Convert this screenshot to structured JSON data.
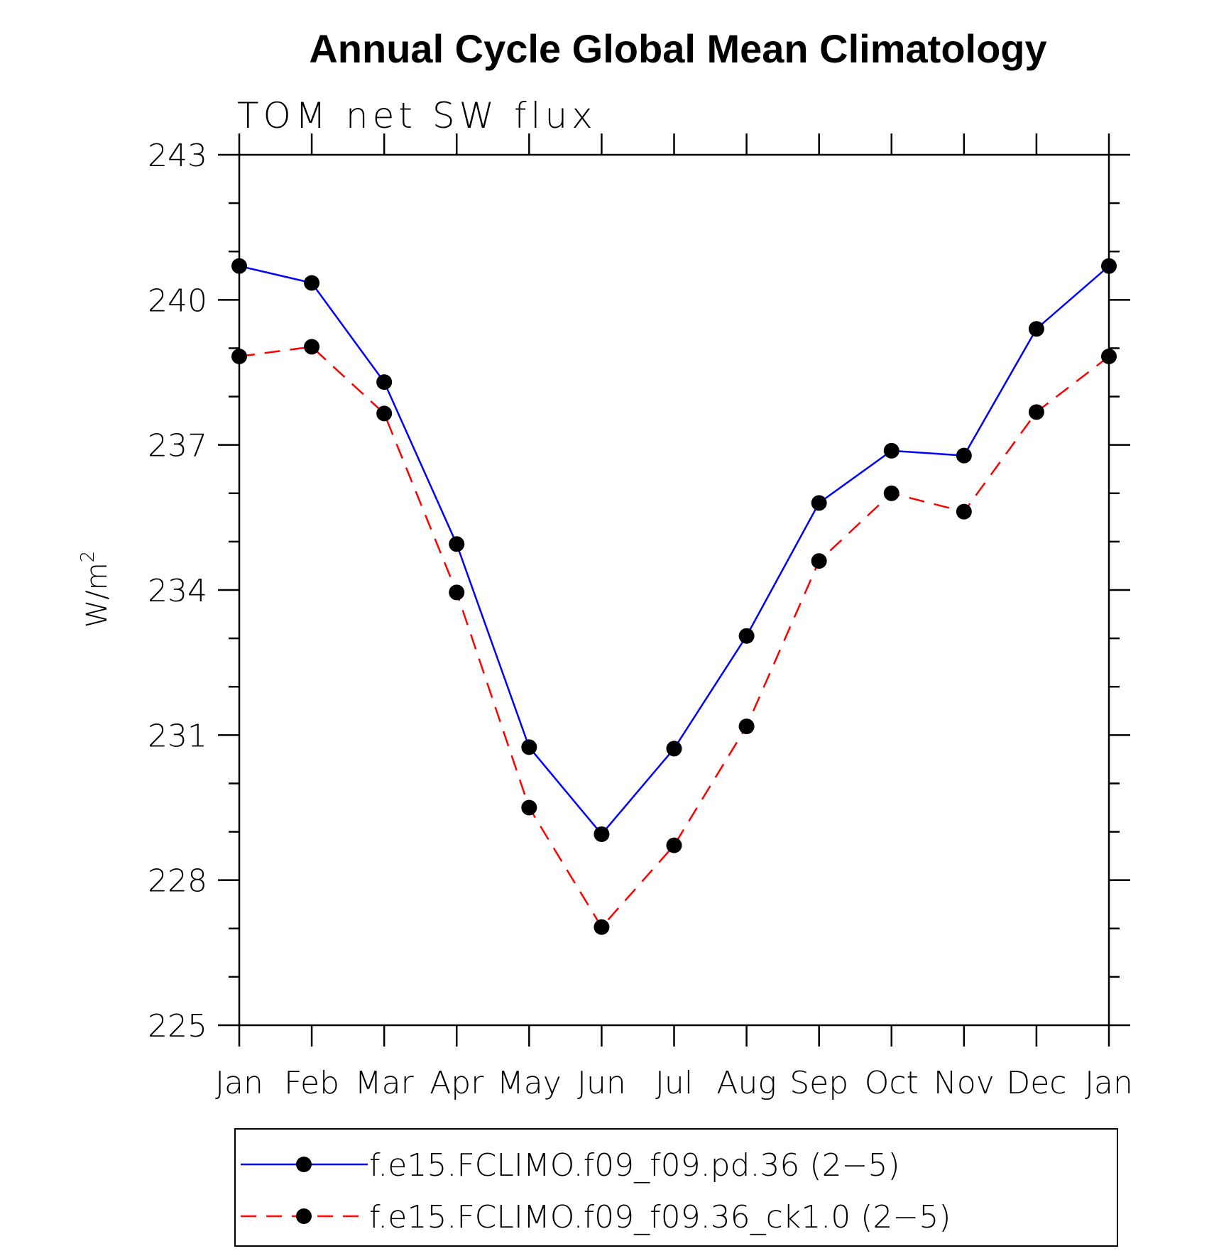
{
  "chart_data": {
    "type": "line",
    "title": "Annual Cycle Global Mean Climatology",
    "subtitle": "TOM net SW flux",
    "ylabel": "W/m",
    "ylabel_superscript": "2",
    "xlabel": "",
    "categories": [
      "Jan",
      "Feb",
      "Mar",
      "Apr",
      "May",
      "Jun",
      "Jul",
      "Aug",
      "Sep",
      "Oct",
      "Nov",
      "Dec",
      "Jan"
    ],
    "ylim": [
      225,
      243
    ],
    "yticks": [
      225,
      228,
      231,
      234,
      237,
      240,
      243
    ],
    "grid": false,
    "legend_position": "bottom",
    "series": [
      {
        "name": "f.e15.FCLIMO.f09_f09.pd.36 (2−5)",
        "values": [
          240.7,
          240.35,
          238.3,
          234.95,
          230.75,
          228.95,
          230.72,
          233.05,
          235.8,
          236.88,
          236.78,
          239.4,
          240.7
        ],
        "color": "#0000ff",
        "dash": "solid",
        "marker": "circle"
      },
      {
        "name": "f.e15.FCLIMO.f09_f09.36_ck1.0 (2−5)",
        "values": [
          238.83,
          239.03,
          237.65,
          233.95,
          229.5,
          227.03,
          228.72,
          231.18,
          234.6,
          236.0,
          235.62,
          237.68,
          238.83
        ],
        "color": "#ff0000",
        "dash": "dashed",
        "marker": "circle"
      }
    ]
  }
}
